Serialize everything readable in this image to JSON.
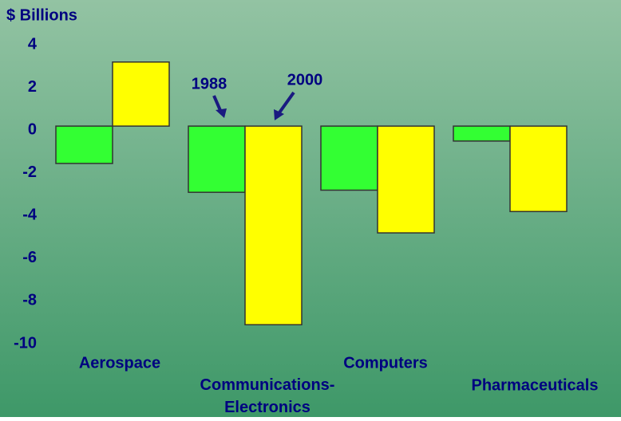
{
  "chart_data": {
    "type": "bar",
    "y_label": "$ Billions",
    "categories": [
      "Aerospace",
      "Communications- Electronics",
      "Computers",
      "Pharmaceuticals"
    ],
    "series": [
      {
        "name": "1988",
        "color": "#33ff33",
        "values": [
          -1.75,
          -3.1,
          -3.0,
          -0.7
        ]
      },
      {
        "name": "2000",
        "color": "#ffff00",
        "values": [
          3.0,
          -9.3,
          -5.0,
          -4.0
        ]
      }
    ],
    "ylim": [
      -10,
      4
    ],
    "yticks": [
      4,
      2,
      0,
      -2,
      -4,
      -6,
      -8,
      -10
    ]
  }
}
